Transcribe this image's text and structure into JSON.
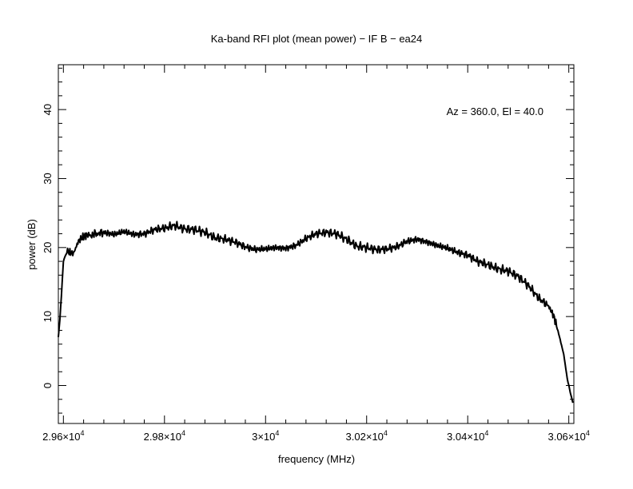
{
  "chart_data": {
    "type": "line",
    "title": "Ka-band RFI plot (mean power) − IF B − ea24",
    "xlabel": "frequency (MHz)",
    "ylabel": "power (dB)",
    "annotation": "Az = 360.0, El = 40.0",
    "xlim": [
      29590,
      30610
    ],
    "ylim": [
      -5.5,
      46.5
    ],
    "grid": false,
    "legend": "none",
    "x_ticks": [
      29600,
      29800,
      30000,
      30200,
      30400,
      30600
    ],
    "x_tick_labels": [
      {
        "base": "2.96×10",
        "exp": "4"
      },
      {
        "base": "2.98×10",
        "exp": "4"
      },
      {
        "base": "3×10",
        "exp": "4"
      },
      {
        "base": "3.02×10",
        "exp": "4"
      },
      {
        "base": "3.04×10",
        "exp": "4"
      },
      {
        "base": "3.06×10",
        "exp": "4"
      }
    ],
    "y_ticks": [
      0,
      10,
      20,
      30,
      40
    ],
    "y_tick_labels": [
      "0",
      "10",
      "20",
      "30",
      "40"
    ],
    "line_color": "#000000",
    "series": [
      {
        "x": [
          29590,
          29593,
          29596,
          29600,
          29605,
          29610,
          29620,
          29630,
          29640,
          29650,
          29665,
          29680,
          29700,
          29720,
          29740,
          29760,
          29780,
          29800,
          29820,
          29840,
          29860,
          29880,
          29900,
          29920,
          29940,
          29960,
          29980,
          30000,
          30020,
          30040,
          30060,
          30080,
          30100,
          30120,
          30140,
          30160,
          30180,
          30200,
          30220,
          30240,
          30260,
          30280,
          30300,
          30320,
          30340,
          30360,
          30380,
          30400,
          30420,
          30440,
          30460,
          30480,
          30500,
          30520,
          30540,
          30560,
          30570,
          30580,
          30590,
          30597,
          30603,
          30608
        ],
        "y": [
          7.0,
          9.5,
          13.0,
          18.0,
          19.0,
          19.5,
          19.3,
          21.0,
          21.5,
          21.7,
          22.0,
          22.2,
          21.9,
          22.3,
          21.9,
          22.0,
          22.6,
          22.8,
          23.2,
          22.7,
          22.6,
          22.2,
          21.4,
          21.2,
          20.8,
          20.1,
          19.7,
          19.8,
          20.0,
          19.9,
          20.3,
          21.3,
          22.0,
          22.2,
          22.0,
          21.2,
          20.2,
          20.0,
          19.7,
          19.8,
          20.1,
          20.9,
          21.2,
          20.8,
          20.3,
          19.9,
          19.3,
          18.9,
          18.0,
          17.5,
          16.9,
          16.6,
          15.8,
          14.5,
          12.7,
          11.5,
          10.0,
          7.5,
          4.5,
          1.0,
          -1.0,
          -2.5
        ]
      }
    ]
  }
}
